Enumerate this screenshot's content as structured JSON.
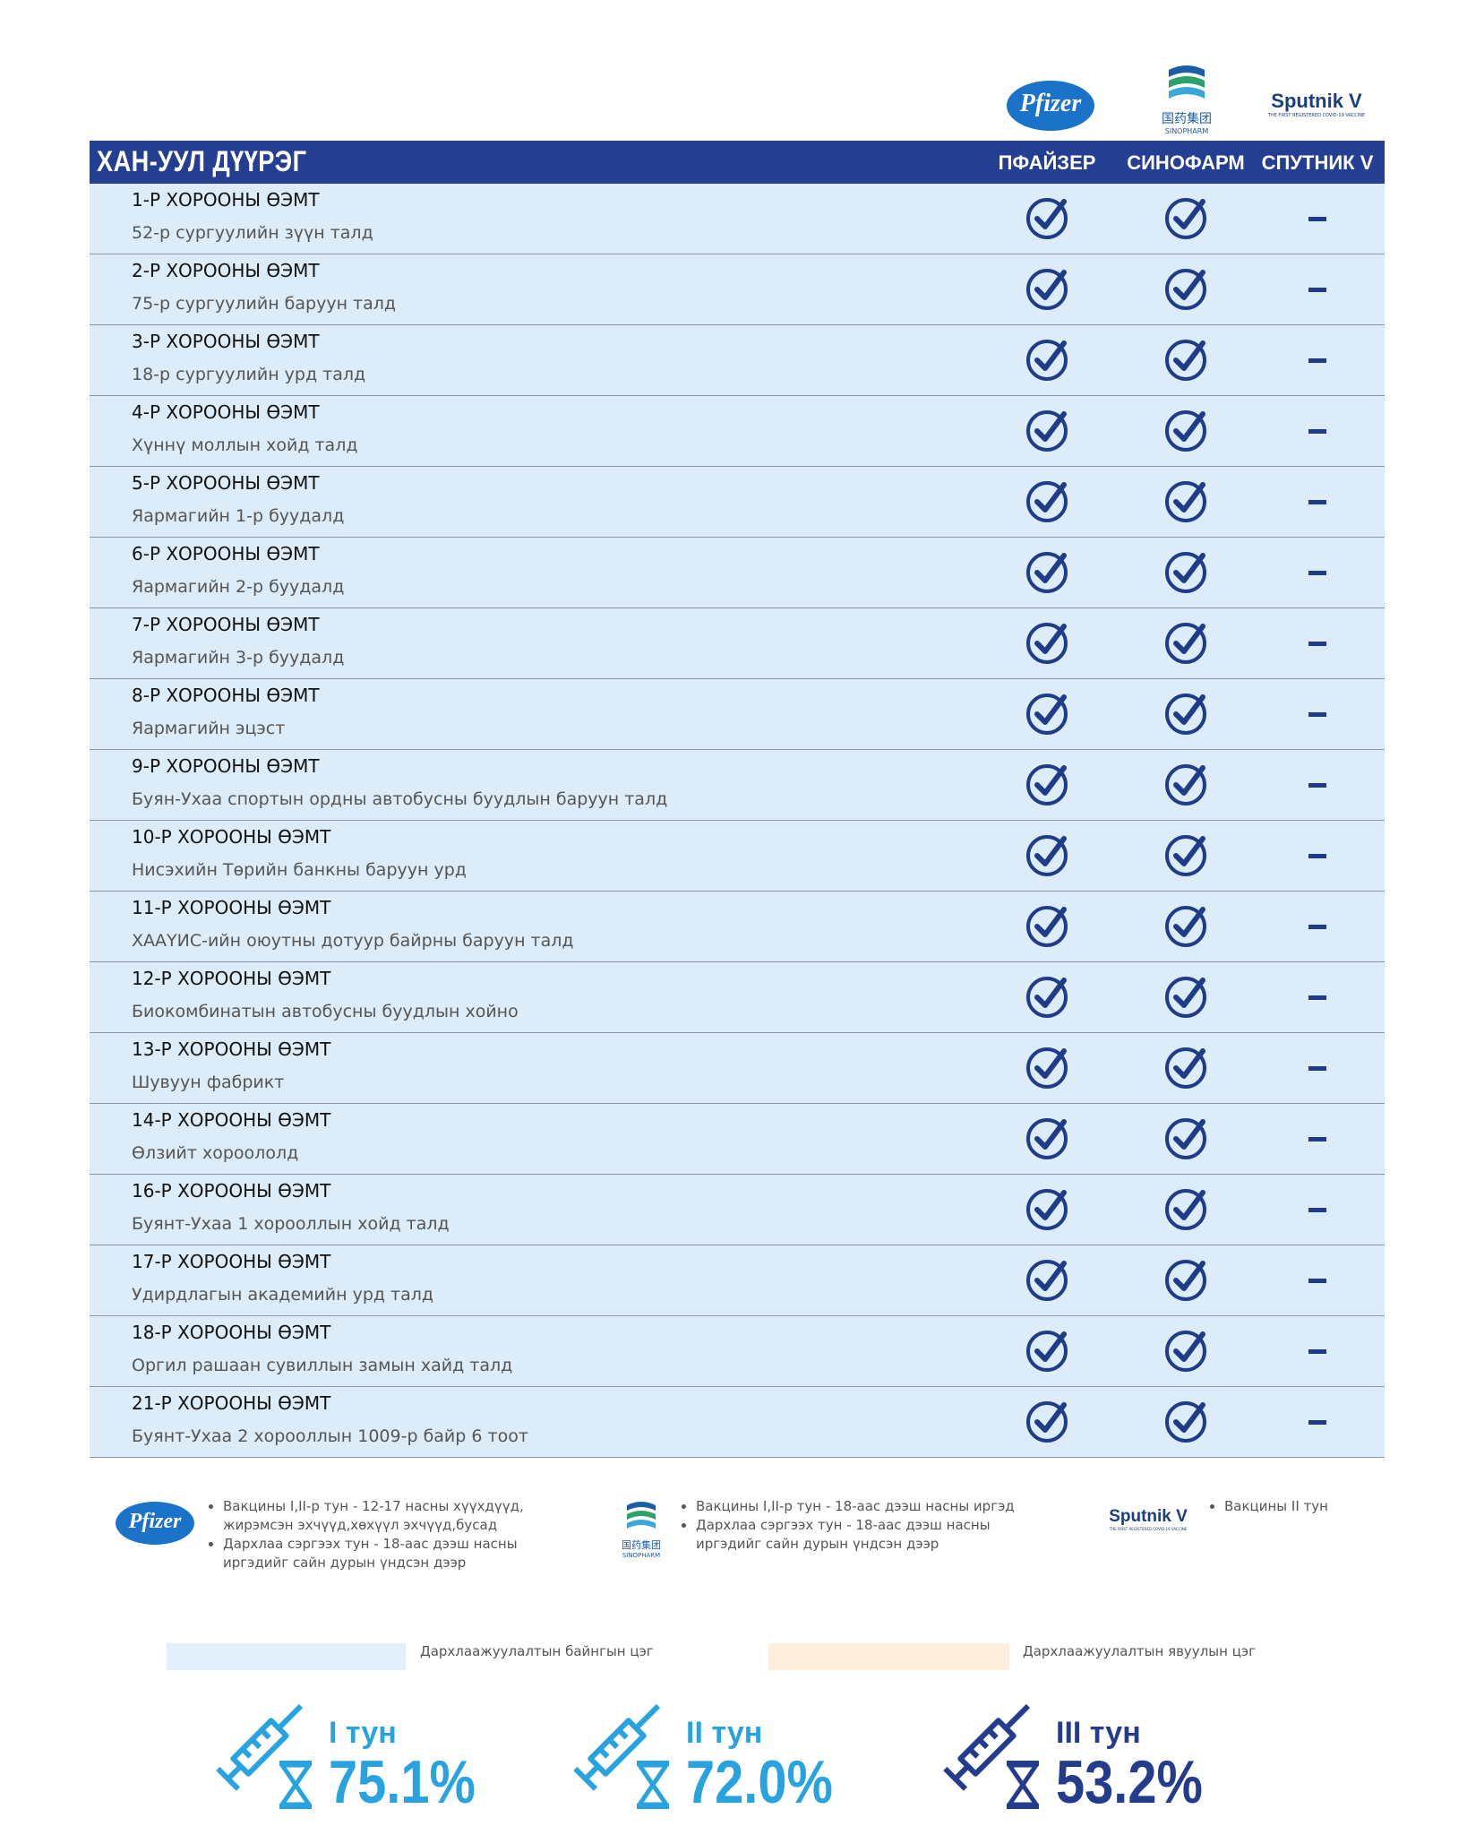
{
  "logos": {
    "pfizer": "Pfizer",
    "sinopharm": {
      "cn": "国药集团",
      "en": "SINOPHARM"
    },
    "sputnik": {
      "name": "Sputnik V",
      "tagline": "THE FIRST REGISTERED COVID-19 VACCINE"
    }
  },
  "table": {
    "title": "ХАН-УУЛ ДҮҮРЭГ",
    "columns": [
      "ПФАЙЗЕР",
      "СИНОФАРМ",
      "СПУТНИК V"
    ],
    "rows": [
      {
        "name": "1-Р ХОРООНЫ ӨЭМТ",
        "location": "52-р сургуулийн зүүн талд"
      },
      {
        "name": "2-Р ХОРООНЫ ӨЭМТ",
        "location": "75-р сургуулийн баруун талд"
      },
      {
        "name": "3-Р ХОРООНЫ ӨЭМТ",
        "location": "18-р сургуулийн урд талд"
      },
      {
        "name": "4-Р ХОРООНЫ ӨЭМТ",
        "location": "Хүннү моллын хойд талд"
      },
      {
        "name": "5-Р ХОРООНЫ ӨЭМТ",
        "location": "Яармагийн 1-р буудалд"
      },
      {
        "name": "6-Р ХОРООНЫ ӨЭМТ",
        "location": "Яармагийн 2-р буудалд"
      },
      {
        "name": "7-Р ХОРООНЫ ӨЭМТ",
        "location": "Яармагийн 3-р буудалд"
      },
      {
        "name": "8-Р ХОРООНЫ ӨЭМТ",
        "location": "Яармагийн эцэст"
      },
      {
        "name": "9-Р ХОРООНЫ ӨЭМТ",
        "location": "Буян-Ухаа спортын ордны автобусны буудлын баруун талд"
      },
      {
        "name": "10-Р ХОРООНЫ ӨЭМТ",
        "location": "Нисэхийн Төрийн банкны баруун урд"
      },
      {
        "name": "11-Р ХОРООНЫ ӨЭМТ",
        "location": "ХААҮИС-ийн оюутны дотуур байрны баруун талд"
      },
      {
        "name": "12-Р ХОРООНЫ ӨЭМТ",
        "location": "Биокомбинатын автобусны буудлын хойно"
      },
      {
        "name": "13-Р ХОРООНЫ ӨЭМТ",
        "location": "Шувуун фабрикт"
      },
      {
        "name": "14-Р ХОРООНЫ ӨЭМТ",
        "location": "Өлзийт хороололд"
      },
      {
        "name": "16-Р ХОРООНЫ ӨЭМТ",
        "location": "Буянт-Ухаа 1 хорооллын хойд талд"
      },
      {
        "name": "17-Р ХОРООНЫ ӨЭМТ",
        "location": "Удирдлагын академийн урд талд"
      },
      {
        "name": "18-Р ХОРООНЫ ӨЭМТ",
        "location": "Оргил рашаан сувиллын замын хайд  талд"
      },
      {
        "name": "21-Р ХОРООНЫ  ӨЭМТ",
        "location": "Буянт-Ухаа 2 хорооллын 1009-р байр 6 тоот"
      }
    ]
  },
  "notes": {
    "pfizer": [
      "Вакцины I,II-р тун - 12-17 насны хүүхдүүд, жирэмсэн эхчүүд,хөхүүл эхчүүд,бусад",
      "Дархлаа сэргээх тун - 18-аас дээш насны иргэдийг сайн дурын үндсэн дээр"
    ],
    "sinopharm": [
      "Вакцины I,II-р тун - 18-аас дээш насны иргэд",
      "Дархлаа сэргээх тун - 18-аас дээш насны иргэдийг сайн дурын үндсэн дээр"
    ],
    "sputnik": [
      "Вакцины II тун"
    ]
  },
  "legend": [
    "Дархлаажуулалтын байнгын цэг",
    "Дархлаажуулалтын явуулын цэг"
  ],
  "doses": [
    {
      "label": "I тун",
      "value": "75.1%"
    },
    {
      "label": "II тун",
      "value": "72.0%"
    },
    {
      "label": "III тун",
      "value": "53.2%"
    }
  ]
}
